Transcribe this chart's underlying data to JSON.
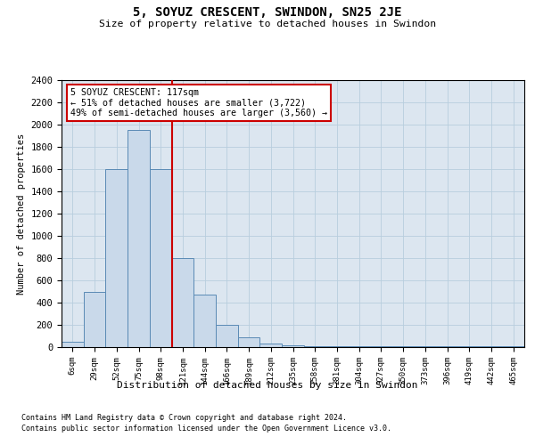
{
  "title_line1": "5, SOYUZ CRESCENT, SWINDON, SN25 2JE",
  "title_line2": "Size of property relative to detached houses in Swindon",
  "xlabel": "Distribution of detached houses by size in Swindon",
  "ylabel": "Number of detached properties",
  "footnote1": "Contains HM Land Registry data © Crown copyright and database right 2024.",
  "footnote2": "Contains public sector information licensed under the Open Government Licence v3.0.",
  "annotation_line1": "5 SOYUZ CRESCENT: 117sqm",
  "annotation_line2": "← 51% of detached houses are smaller (3,722)",
  "annotation_line3": "49% of semi-detached houses are larger (3,560) →",
  "bar_color": "#c9d9ea",
  "bar_edge_color": "#5a8ab5",
  "vline_color": "#cc0000",
  "annotation_box_color": "#ffffff",
  "annotation_box_edge": "#cc0000",
  "plot_bg_color": "#dce6f0",
  "grid_color": "#b8cede",
  "categories": [
    "6sqm",
    "29sqm",
    "52sqm",
    "75sqm",
    "98sqm",
    "121sqm",
    "144sqm",
    "166sqm",
    "189sqm",
    "212sqm",
    "235sqm",
    "258sqm",
    "281sqm",
    "304sqm",
    "327sqm",
    "350sqm",
    "373sqm",
    "396sqm",
    "419sqm",
    "442sqm",
    "465sqm"
  ],
  "values": [
    50,
    500,
    1600,
    1950,
    1600,
    800,
    475,
    200,
    90,
    30,
    20,
    10,
    5,
    5,
    5,
    5,
    5,
    5,
    5,
    5,
    5
  ],
  "vline_x": 4.5,
  "ylim": [
    0,
    2400
  ],
  "yticks": [
    0,
    200,
    400,
    600,
    800,
    1000,
    1200,
    1400,
    1600,
    1800,
    2000,
    2200,
    2400
  ]
}
